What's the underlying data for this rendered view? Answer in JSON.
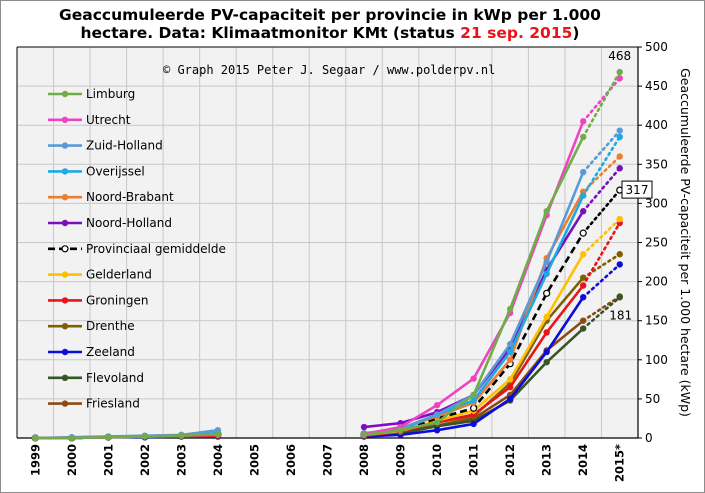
{
  "title": {
    "line1": "Geaccumuleerde PV-capaciteit per provincie in kWp per 1.000",
    "line2_prefix": "hectare. Data: Klimaatmonitor KMt (status ",
    "line2_date": "21 sep. 2015",
    "line2_suffix": ")"
  },
  "copyright": "© Graph 2015 Peter J. Segaar / www.polderpv.nl",
  "colors": {
    "title_highlight": "#e8141a",
    "plot_bg": "#f2f2f2",
    "grid": "#c8c8c8"
  },
  "chart_data": {
    "type": "line",
    "categories": [
      "1999",
      "2000",
      "2001",
      "2002",
      "2003",
      "2004",
      "2005",
      "2006",
      "2007",
      "2008",
      "2009",
      "2010",
      "2011",
      "2012",
      "2013",
      "2014",
      "2015*"
    ],
    "ylim": [
      0,
      500
    ],
    "yticks": [
      0,
      50,
      100,
      150,
      200,
      250,
      300,
      350,
      400,
      450,
      500
    ],
    "ylabel": "Geaccumuleerde PV-capaciteit per 1.000 hectare (kWp)",
    "y_axis_side": "right",
    "grid": true,
    "legend_position": "top-left",
    "dotted_last_segment": true,
    "annotations": [
      {
        "text": "468",
        "x": "2015*",
        "y": 468,
        "color": "#6aa84f",
        "position": "above"
      },
      {
        "text": "317",
        "x": "2015*",
        "y": 317,
        "color": "#000000",
        "boxed": true
      },
      {
        "text": "181",
        "x": "2015*",
        "y": 181,
        "color": "#8b4a16",
        "position": "below-left"
      }
    ],
    "series": [
      {
        "name": "Limburg",
        "color": "#70ad47",
        "values": [
          0,
          0,
          1,
          2,
          3,
          5,
          null,
          null,
          null,
          4,
          10,
          20,
          55,
          165,
          290,
          385,
          468
        ]
      },
      {
        "name": "Utrecht",
        "color": "#ee44c4",
        "values": [
          0,
          0,
          1,
          2,
          3,
          4,
          null,
          null,
          null,
          5,
          14,
          42,
          76,
          160,
          285,
          405,
          460
        ]
      },
      {
        "name": "Zuid-Holland",
        "color": "#5b9bd5",
        "values": [
          0,
          1,
          2,
          3,
          4,
          10,
          null,
          null,
          null,
          6,
          12,
          30,
          55,
          120,
          225,
          340,
          393
        ]
      },
      {
        "name": "Overijssel",
        "color": "#1da8e6",
        "values": [
          0,
          0,
          1,
          2,
          3,
          6,
          null,
          null,
          null,
          5,
          10,
          30,
          48,
          110,
          210,
          310,
          385
        ]
      },
      {
        "name": "Noord-Brabant",
        "color": "#ed7d31",
        "values": [
          0,
          0,
          1,
          2,
          3,
          5,
          null,
          null,
          null,
          5,
          12,
          28,
          45,
          100,
          230,
          315,
          360
        ]
      },
      {
        "name": "Noord-Holland",
        "color": "#7a0fbd",
        "values": [
          0,
          0,
          1,
          2,
          3,
          6,
          null,
          null,
          null,
          14,
          19,
          33,
          55,
          115,
          215,
          290,
          345
        ]
      },
      {
        "name": "Provinciaal gemiddelde",
        "color": "#000000",
        "dashed": true,
        "values": [
          0,
          0,
          1,
          2,
          3,
          5,
          null,
          null,
          null,
          5,
          10,
          25,
          38,
          95,
          185,
          262,
          317
        ]
      },
      {
        "name": "Gelderland",
        "color": "#ffc000",
        "values": [
          0,
          0,
          1,
          2,
          3,
          5,
          null,
          null,
          null,
          4,
          9,
          22,
          35,
          75,
          155,
          235,
          280
        ]
      },
      {
        "name": "Groningen",
        "color": "#e8141a",
        "legend_label_color": "#e8141a",
        "values": [
          0,
          0,
          1,
          2,
          2,
          3,
          null,
          null,
          null,
          3,
          8,
          20,
          30,
          65,
          135,
          195,
          275
        ]
      },
      {
        "name": "Drenthe",
        "color": "#7f6000",
        "values": [
          0,
          0,
          1,
          2,
          2,
          3,
          null,
          null,
          null,
          3,
          8,
          20,
          28,
          70,
          150,
          205,
          235
        ]
      },
      {
        "name": "Zeeland",
        "color": "#0d0ddb",
        "values": [
          0,
          0,
          1,
          1,
          2,
          2,
          null,
          null,
          null,
          2,
          4,
          10,
          18,
          50,
          110,
          180,
          222
        ]
      },
      {
        "name": "Flevoland",
        "color": "#375623",
        "values": [
          0,
          0,
          1,
          1,
          2,
          2,
          null,
          null,
          null,
          2,
          6,
          15,
          22,
          48,
          97,
          140,
          180
        ]
      },
      {
        "name": "Friesland",
        "color": "#8b4a16",
        "values": [
          0,
          0,
          1,
          1,
          2,
          2,
          null,
          null,
          null,
          2,
          7,
          16,
          25,
          55,
          112,
          150,
          181
        ]
      }
    ]
  }
}
